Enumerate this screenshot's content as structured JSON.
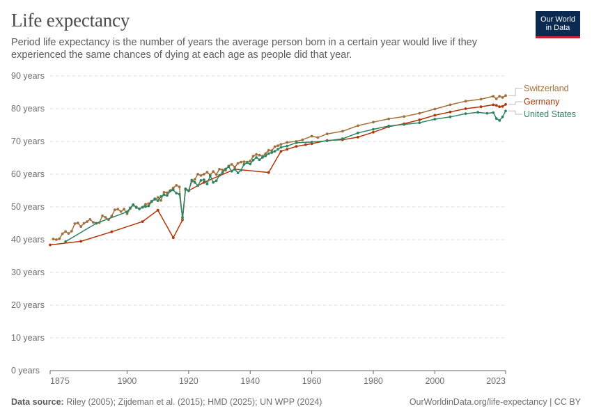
{
  "header": {
    "title": "Life expectancy",
    "subtitle": "Period life expectancy is the number of years the average person born in a certain year would live if they experienced the same chances of dying at each age as people did that year.",
    "logo_line1": "Our World",
    "logo_line2": "in Data"
  },
  "footer": {
    "source_label": "Data source:",
    "source_text": " Riley (2005); Zijdeman et al. (2015); HMD (2025); UN WPP (2024)",
    "link_text": "OurWorldinData.org/life-expectancy | CC BY"
  },
  "colors": {
    "switzerland": "#a2703a",
    "germany": "#b13507",
    "united_states": "#2c8465",
    "grid": "#dddddd",
    "axis": "#666666",
    "tick_text": "#6e6e6e"
  },
  "chart_data": {
    "type": "line",
    "title": "Life expectancy",
    "xlim": [
      1875,
      2023
    ],
    "ylim": [
      0,
      90
    ],
    "y_ticks": [
      0,
      10,
      20,
      30,
      40,
      50,
      60,
      70,
      80,
      90
    ],
    "y_tick_labels": [
      "0 years",
      "10 years",
      "20 years",
      "30 years",
      "40 years",
      "50 years",
      "60 years",
      "70 years",
      "80 years",
      "90 years"
    ],
    "x_ticks": [
      1875,
      1900,
      1920,
      1940,
      1960,
      1980,
      2000,
      2023
    ],
    "x_tick_labels": [
      "1875",
      "1900",
      "1920",
      "1940",
      "1960",
      "1980",
      "2000",
      "2023"
    ],
    "grid": "horizontal dashed",
    "legend": "right (labels at line ends)",
    "series": [
      {
        "name": "Germany",
        "color": "#b13507",
        "points": [
          [
            1875,
            38.4
          ],
          [
            1885,
            39.5
          ],
          [
            1895,
            42.4
          ],
          [
            1905,
            45.5
          ],
          [
            1910,
            49.0
          ],
          [
            1915,
            40.6
          ],
          [
            1918,
            46.0
          ],
          [
            1919,
            55.5
          ],
          [
            1920,
            55.0
          ],
          [
            1925,
            57.5
          ],
          [
            1935,
            61.5
          ],
          [
            1946,
            60.5
          ],
          [
            1950,
            67.0
          ],
          [
            1952,
            67.6
          ],
          [
            1955,
            68.5
          ],
          [
            1958,
            69.0
          ],
          [
            1960,
            69.3
          ],
          [
            1965,
            70.3
          ],
          [
            1970,
            70.5
          ],
          [
            1975,
            71.3
          ],
          [
            1980,
            72.8
          ],
          [
            1985,
            74.5
          ],
          [
            1990,
            75.4
          ],
          [
            1995,
            76.6
          ],
          [
            2000,
            78.0
          ],
          [
            2005,
            79.0
          ],
          [
            2010,
            80.0
          ],
          [
            2015,
            80.6
          ],
          [
            2019,
            81.2
          ],
          [
            2020,
            81.0
          ],
          [
            2021,
            80.6
          ],
          [
            2022,
            80.7
          ],
          [
            2023,
            81.3
          ]
        ]
      },
      {
        "name": "Switzerland",
        "color": "#a2703a",
        "points": [
          [
            1876,
            40.2
          ],
          [
            1877,
            40.0
          ],
          [
            1878,
            40.3
          ],
          [
            1879,
            41.8
          ],
          [
            1880,
            42.5
          ],
          [
            1881,
            41.9
          ],
          [
            1882,
            42.6
          ],
          [
            1883,
            44.9
          ],
          [
            1884,
            45.1
          ],
          [
            1885,
            44.0
          ],
          [
            1886,
            45.0
          ],
          [
            1887,
            45.5
          ],
          [
            1888,
            46.2
          ],
          [
            1889,
            45.3
          ],
          [
            1890,
            45.0
          ],
          [
            1891,
            45.2
          ],
          [
            1892,
            47.3
          ],
          [
            1893,
            46.8
          ],
          [
            1894,
            46.1
          ],
          [
            1895,
            47.2
          ],
          [
            1896,
            49.1
          ],
          [
            1897,
            49.3
          ],
          [
            1898,
            48.6
          ],
          [
            1899,
            49.3
          ],
          [
            1900,
            47.9
          ],
          [
            1901,
            49.5
          ],
          [
            1902,
            50.5
          ],
          [
            1903,
            50.0
          ],
          [
            1904,
            49.4
          ],
          [
            1905,
            49.9
          ],
          [
            1906,
            50.8
          ],
          [
            1907,
            51.0
          ],
          [
            1908,
            51.8
          ],
          [
            1909,
            52.3
          ],
          [
            1910,
            52.9
          ],
          [
            1911,
            52.0
          ],
          [
            1912,
            54.5
          ],
          [
            1913,
            54.3
          ],
          [
            1914,
            55.0
          ],
          [
            1915,
            55.8
          ],
          [
            1916,
            56.6
          ],
          [
            1917,
            56.1
          ],
          [
            1918,
            46.3
          ],
          [
            1919,
            55.3
          ],
          [
            1920,
            54.9
          ],
          [
            1921,
            57.8
          ],
          [
            1922,
            58.4
          ],
          [
            1923,
            60.0
          ],
          [
            1924,
            59.6
          ],
          [
            1925,
            60.0
          ],
          [
            1926,
            60.6
          ],
          [
            1927,
            59.8
          ],
          [
            1928,
            60.8
          ],
          [
            1929,
            59.9
          ],
          [
            1930,
            61.5
          ],
          [
            1931,
            61.3
          ],
          [
            1932,
            61.2
          ],
          [
            1933,
            62.5
          ],
          [
            1934,
            63.0
          ],
          [
            1935,
            62.2
          ],
          [
            1936,
            63.3
          ],
          [
            1937,
            63.7
          ],
          [
            1938,
            63.8
          ],
          [
            1939,
            63.7
          ],
          [
            1940,
            64.0
          ],
          [
            1941,
            65.5
          ],
          [
            1942,
            66.0
          ],
          [
            1943,
            65.8
          ],
          [
            1944,
            65.5
          ],
          [
            1945,
            66.3
          ],
          [
            1946,
            67.3
          ],
          [
            1947,
            67.2
          ],
          [
            1948,
            68.4
          ],
          [
            1949,
            68.7
          ],
          [
            1950,
            69.1
          ],
          [
            1952,
            69.7
          ],
          [
            1955,
            70.0
          ],
          [
            1957,
            70.5
          ],
          [
            1960,
            71.6
          ],
          [
            1962,
            71.2
          ],
          [
            1965,
            72.3
          ],
          [
            1970,
            73.1
          ],
          [
            1975,
            74.8
          ],
          [
            1980,
            75.9
          ],
          [
            1985,
            76.9
          ],
          [
            1990,
            77.6
          ],
          [
            1995,
            78.6
          ],
          [
            2000,
            79.9
          ],
          [
            2005,
            81.2
          ],
          [
            2010,
            82.3
          ],
          [
            2015,
            82.9
          ],
          [
            2019,
            83.8
          ],
          [
            2020,
            83.0
          ],
          [
            2021,
            83.8
          ],
          [
            2022,
            83.4
          ],
          [
            2023,
            84.0
          ]
        ]
      },
      {
        "name": "United States",
        "color": "#2c8465",
        "points": [
          [
            1880,
            39.4
          ],
          [
            1890,
            45.0
          ],
          [
            1900,
            48.5
          ],
          [
            1901,
            49.7
          ],
          [
            1902,
            50.7
          ],
          [
            1903,
            49.8
          ],
          [
            1904,
            49.4
          ],
          [
            1905,
            49.9
          ],
          [
            1906,
            50.1
          ],
          [
            1907,
            50.3
          ],
          [
            1908,
            51.6
          ],
          [
            1909,
            52.5
          ],
          [
            1910,
            51.9
          ],
          [
            1911,
            53.2
          ],
          [
            1912,
            53.7
          ],
          [
            1913,
            53.5
          ],
          [
            1914,
            54.8
          ],
          [
            1915,
            55.2
          ],
          [
            1916,
            54.2
          ],
          [
            1917,
            53.9
          ],
          [
            1918,
            46.8
          ],
          [
            1919,
            55.5
          ],
          [
            1920,
            54.9
          ],
          [
            1921,
            58.2
          ],
          [
            1922,
            57.5
          ],
          [
            1923,
            56.5
          ],
          [
            1924,
            58.1
          ],
          [
            1925,
            58.3
          ],
          [
            1926,
            57.0
          ],
          [
            1927,
            59.5
          ],
          [
            1928,
            57.5
          ],
          [
            1929,
            58.0
          ],
          [
            1930,
            59.6
          ],
          [
            1931,
            60.5
          ],
          [
            1932,
            61.6
          ],
          [
            1933,
            62.3
          ],
          [
            1934,
            60.9
          ],
          [
            1935,
            61.5
          ],
          [
            1936,
            60.4
          ],
          [
            1937,
            61.2
          ],
          [
            1938,
            63.0
          ],
          [
            1939,
            63.5
          ],
          [
            1940,
            63.1
          ],
          [
            1941,
            64.3
          ],
          [
            1942,
            65.1
          ],
          [
            1943,
            64.4
          ],
          [
            1944,
            65.1
          ],
          [
            1945,
            65.6
          ],
          [
            1946,
            66.3
          ],
          [
            1947,
            66.6
          ],
          [
            1948,
            67.0
          ],
          [
            1949,
            67.6
          ],
          [
            1950,
            68.2
          ],
          [
            1952,
            68.6
          ],
          [
            1955,
            69.6
          ],
          [
            1960,
            69.8
          ],
          [
            1965,
            70.2
          ],
          [
            1970,
            70.8
          ],
          [
            1975,
            72.6
          ],
          [
            1980,
            73.7
          ],
          [
            1985,
            74.7
          ],
          [
            1990,
            75.2
          ],
          [
            1995,
            75.7
          ],
          [
            2000,
            76.8
          ],
          [
            2005,
            77.5
          ],
          [
            2010,
            78.5
          ],
          [
            2014,
            78.9
          ],
          [
            2017,
            78.6
          ],
          [
            2019,
            78.8
          ],
          [
            2020,
            77.0
          ],
          [
            2021,
            76.4
          ],
          [
            2022,
            77.5
          ],
          [
            2023,
            79.3
          ]
        ]
      }
    ]
  }
}
